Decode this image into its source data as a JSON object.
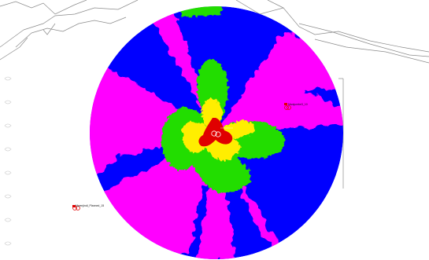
{
  "map": {
    "coverage_colors": {
      "strongest": "#e00000",
      "strong": "#ffee00",
      "medium": "#22dd00",
      "weak": "#0000ff",
      "weakest": "#ff00ff"
    },
    "outline_color": "#8a8a8a",
    "sites": [
      {
        "name": "site-center",
        "label": "",
        "icon": "tower-marker-icon"
      },
      {
        "name": "site-east",
        "label": "Mwajumbe3_10",
        "icon": "tower-marker-icon"
      },
      {
        "name": "site-west",
        "label": "Mwenjindi_Planned_15",
        "icon": "tower-marker-icon"
      }
    ]
  }
}
